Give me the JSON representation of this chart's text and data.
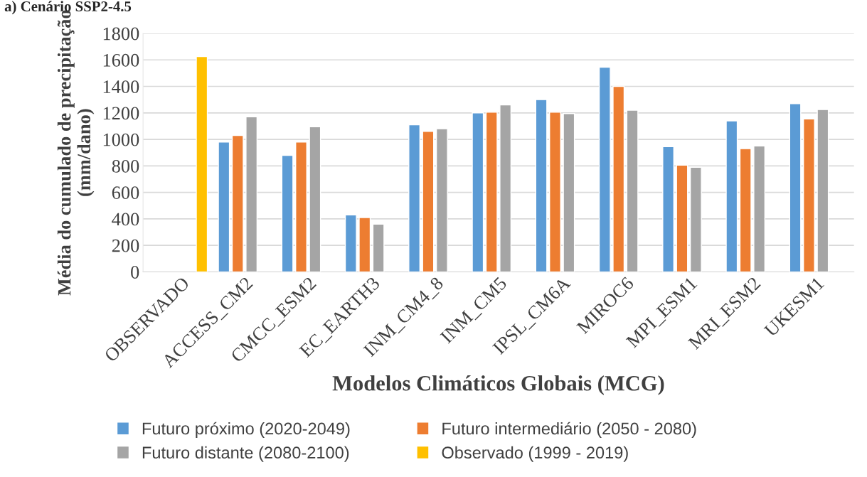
{
  "chart_data": {
    "type": "bar",
    "title": "a) Cenário SSP2-4.5",
    "xlabel": "Modelos Climáticos Globais (MCG)",
    "ylabel": "Média do cumulado de precipitação\n(mm/dano)",
    "categories": [
      "OBSERVADO",
      "ACCESS_CM2",
      "CMCC_ESM2",
      "EC_EARTH3",
      "INM_CM4_8",
      "INM_CM5",
      "IPSL_CM6A",
      "MIROC6",
      "MPI_ESM1",
      "MRI_ESM2",
      "UKESM1"
    ],
    "series": [
      {
        "name": "Futuro próximo (2020-2049)",
        "color": "#5b9bd5",
        "values": [
          null,
          980,
          880,
          430,
          1110,
          1200,
          1300,
          1545,
          945,
          1140,
          1270
        ]
      },
      {
        "name": "Futuro intermediário (2050 - 2080)",
        "color": "#ed7d31",
        "values": [
          null,
          1030,
          980,
          410,
          1060,
          1205,
          1205,
          1400,
          805,
          930,
          1155
        ]
      },
      {
        "name": "Futuro distante (2080-2100)",
        "color": "#a5a5a5",
        "values": [
          null,
          1170,
          1095,
          360,
          1080,
          1260,
          1195,
          1220,
          790,
          950,
          1225
        ]
      },
      {
        "name": "Observado (1999 - 2019)",
        "color": "#ffc000",
        "values": [
          1625,
          null,
          null,
          null,
          null,
          null,
          null,
          null,
          null,
          null,
          null
        ]
      }
    ],
    "ylim": [
      0,
      1800
    ],
    "yticks": [
      0,
      200,
      400,
      600,
      800,
      1000,
      1200,
      1400,
      1600,
      1800
    ],
    "grid": "y",
    "legend": "bottom"
  }
}
